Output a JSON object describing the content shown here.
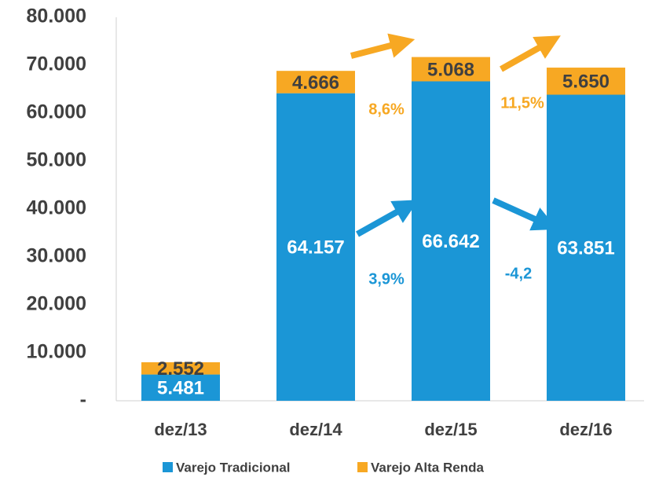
{
  "chart_data": {
    "type": "bar",
    "stacked": true,
    "categories": [
      "dez/13",
      "dez/14",
      "dez/15",
      "dez/16"
    ],
    "series": [
      {
        "name": "Varejo Tradicional",
        "color": "#1b96d6",
        "values": [
          5481,
          64157,
          66642,
          63851
        ],
        "value_labels": [
          "5.481",
          "64.157",
          "66.642",
          "63.851"
        ]
      },
      {
        "name": "Varejo Alta Renda",
        "color": "#f7a823",
        "values": [
          2552,
          4666,
          5068,
          5650
        ],
        "value_labels": [
          "2.552",
          "4.666",
          "5.068",
          "5.650"
        ]
      }
    ],
    "ylim": [
      0,
      80000
    ],
    "yticks": [
      {
        "value": 0,
        "label": "-"
      },
      {
        "value": 10000,
        "label": "10.000"
      },
      {
        "value": 20000,
        "label": "20.000"
      },
      {
        "value": 30000,
        "label": "30.000"
      },
      {
        "value": 40000,
        "label": "40.000"
      },
      {
        "value": 50000,
        "label": "50.000"
      },
      {
        "value": 60000,
        "label": "60.000"
      },
      {
        "value": 70000,
        "label": "70.000"
      },
      {
        "value": 80000,
        "label": "80.000"
      }
    ],
    "annotations": [
      "8,6%",
      "11,5%",
      "3,9%",
      "-4,2"
    ],
    "legend": "bottom",
    "grid": false
  }
}
